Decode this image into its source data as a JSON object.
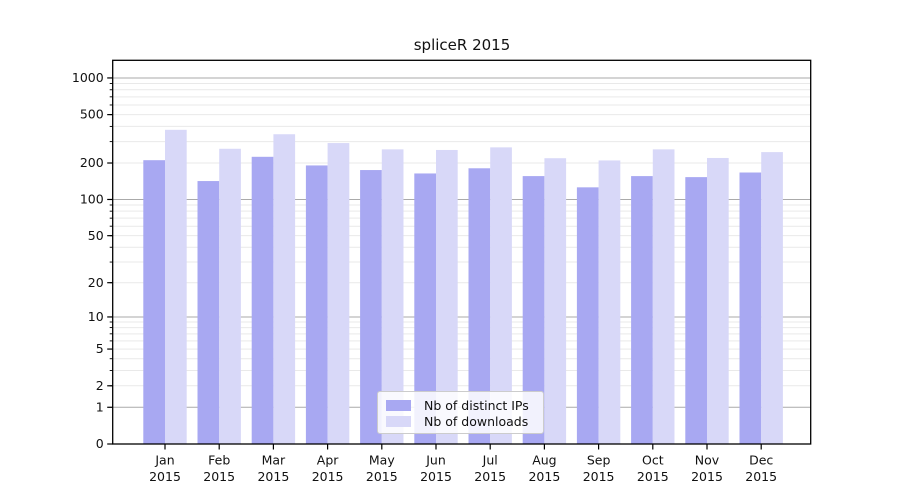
{
  "title": "spliceR 2015",
  "colors": {
    "distinct_ips_bar": "#a8a8f2",
    "downloads_bar": "#d8d8f8",
    "major_grid": "#aaaaaa",
    "minor_grid": "#e9e9e9",
    "axis": "#000000",
    "tick_label": "#111111",
    "legend_border": "#cccccc"
  },
  "chart_data": {
    "type": "bar",
    "title": "spliceR 2015",
    "categories": [
      "Jan 2015",
      "Feb 2015",
      "Mar 2015",
      "Apr 2015",
      "May 2015",
      "Jun 2015",
      "Jul 2015",
      "Aug 2015",
      "Sep 2015",
      "Oct 2015",
      "Nov 2015",
      "Dec 2015"
    ],
    "x_tick_month": [
      "Jan",
      "Feb",
      "Mar",
      "Apr",
      "May",
      "Jun",
      "Jul",
      "Aug",
      "Sep",
      "Oct",
      "Nov",
      "Dec"
    ],
    "x_tick_year": [
      "2015",
      "2015",
      "2015",
      "2015",
      "2015",
      "2015",
      "2015",
      "2015",
      "2015",
      "2015",
      "2015",
      "2015"
    ],
    "series": [
      {
        "name": "Nb of distinct IPs",
        "color_key": "distinct_ips_bar",
        "values": [
          211,
          142,
          225,
          191,
          175,
          164,
          181,
          156,
          126,
          156,
          153,
          167
        ]
      },
      {
        "name": "Nb of downloads",
        "color_key": "downloads_bar",
        "values": [
          375,
          262,
          345,
          292,
          259,
          256,
          269,
          219,
          210,
          259,
          220,
          246
        ]
      }
    ],
    "xlabel": "",
    "ylabel": "",
    "y_scale": "log1p",
    "y_ticks": [
      0,
      1,
      2,
      5,
      10,
      20,
      50,
      100,
      200,
      500,
      1000
    ],
    "major_grid_values": [
      1,
      10,
      100,
      1000
    ],
    "minor_grid_bases": [
      1,
      10,
      100
    ],
    "ylim": [
      0,
      1400
    ],
    "grid": "on",
    "legend_position": "lower center"
  }
}
